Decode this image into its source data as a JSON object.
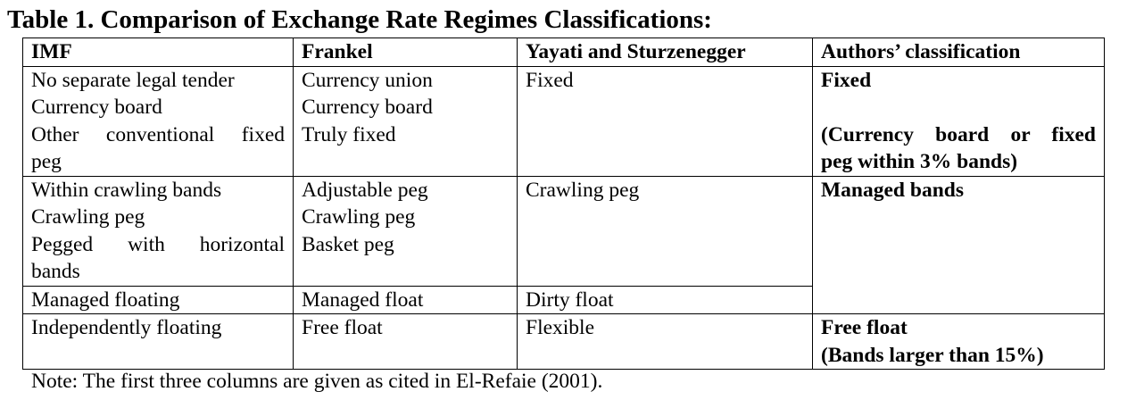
{
  "title": "Table 1. Comparison of Exchange Rate Regimes Classifications:",
  "headers": [
    "IMF",
    "Frankel",
    "Yayati and Sturzenegger",
    "Authors’ classification"
  ],
  "groups": {
    "fixed": {
      "imf": [
        "No separate legal tender",
        "Currency board",
        "Other conventional fixed",
        "peg"
      ],
      "frankel": [
        "Currency union",
        "Currency board",
        "Truly fixed"
      ],
      "ys": [
        "Fixed"
      ],
      "authors": [
        "Fixed",
        "(Currency board or fixed",
        "peg within 3% bands)"
      ]
    },
    "bands": {
      "imf": [
        "Within crawling bands",
        "Crawling peg",
        "Pegged with horizontal",
        "bands"
      ],
      "frankel": [
        "Adjustable peg",
        "Crawling peg",
        "Basket peg"
      ],
      "ys": [
        "Crawling peg"
      ],
      "authors": [
        "Managed bands"
      ]
    },
    "managed": {
      "imf": [
        "Managed floating"
      ],
      "frankel": [
        "Managed float"
      ],
      "ys": [
        "Dirty float"
      ]
    },
    "free": {
      "imf": [
        "Independently floating"
      ],
      "frankel": [
        "Free float"
      ],
      "ys": [
        "Flexible"
      ],
      "authors": [
        "Free float",
        "(Bands larger than 15%)"
      ]
    }
  },
  "note": "Note: The first three columns are given as cited in El-Refaie (2001)."
}
